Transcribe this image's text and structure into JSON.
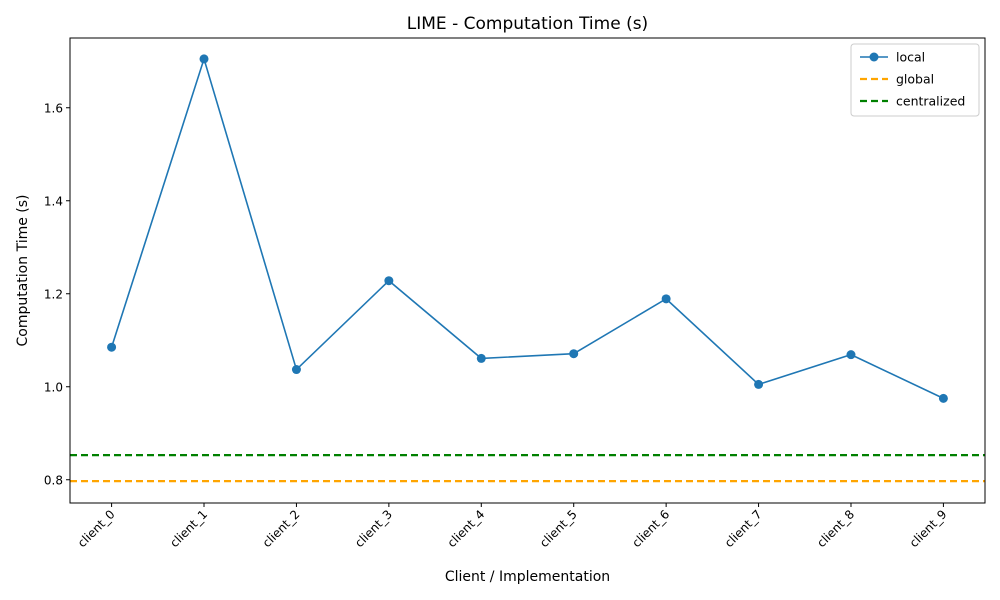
{
  "chart_data": {
    "type": "line",
    "title": "LIME - Computation Time (s)",
    "xlabel": "Client / Implementation",
    "ylabel": "Computation Time (s)",
    "categories": [
      "client_0",
      "client_1",
      "client_2",
      "client_3",
      "client_4",
      "client_5",
      "client_6",
      "client_7",
      "client_8",
      "client_9"
    ],
    "series": [
      {
        "name": "local",
        "color": "#1f77b4",
        "marker": "circle",
        "values": [
          1.085,
          1.705,
          1.037,
          1.228,
          1.061,
          1.071,
          1.189,
          1.005,
          1.069,
          0.975
        ]
      }
    ],
    "reference_lines": [
      {
        "name": "global",
        "value": 0.797,
        "color": "#ffa500",
        "style": "dashed"
      },
      {
        "name": "centralized",
        "value": 0.853,
        "color": "#008000",
        "style": "dashed"
      }
    ],
    "ylim": [
      0.75,
      1.75
    ],
    "yticks": [
      0.8,
      1.0,
      1.2,
      1.4,
      1.6
    ],
    "ytick_labels": [
      "0.8",
      "1.0",
      "1.2",
      "1.4",
      "1.6"
    ],
    "grid": false,
    "legend": {
      "position": "top-right",
      "entries": [
        "local",
        "global",
        "centralized"
      ]
    }
  }
}
